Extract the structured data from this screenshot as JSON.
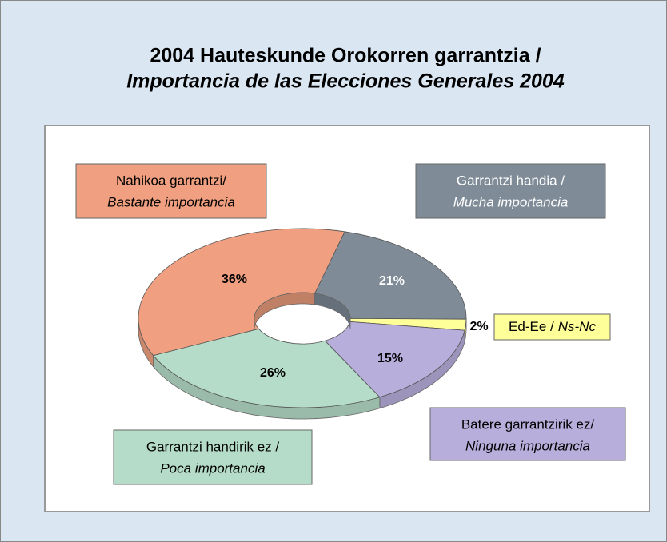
{
  "chart_data": {
    "type": "pie",
    "title": "2004 Hauteskunde Orokorren garrantzia /",
    "subtitle": "Importancia de las Elecciones Generales 2004",
    "categories": [
      [
        "Garrantzi handia /",
        "Mucha importancia"
      ],
      [
        "Ed-Ee /",
        "Ns-Nc"
      ],
      [
        "Batere garrantzirik ez/",
        "Ninguna importancia"
      ],
      [
        "Garrantzi handirik ez /",
        "Poca importancia"
      ],
      [
        "Nahikoa garrantzi/",
        "Bastante importancia"
      ]
    ],
    "values": [
      21,
      2,
      15,
      26,
      36
    ],
    "value_labels": [
      "21%",
      "2%",
      "15%",
      "26%",
      "36%"
    ],
    "colors": [
      "#7f8c98",
      "#ffff99",
      "#b8aedc",
      "#b5dcc8",
      "#f0a080"
    ],
    "label_text_colors": [
      "#ffffff",
      "#000000",
      "#000000",
      "#000000",
      "#000000"
    ]
  }
}
